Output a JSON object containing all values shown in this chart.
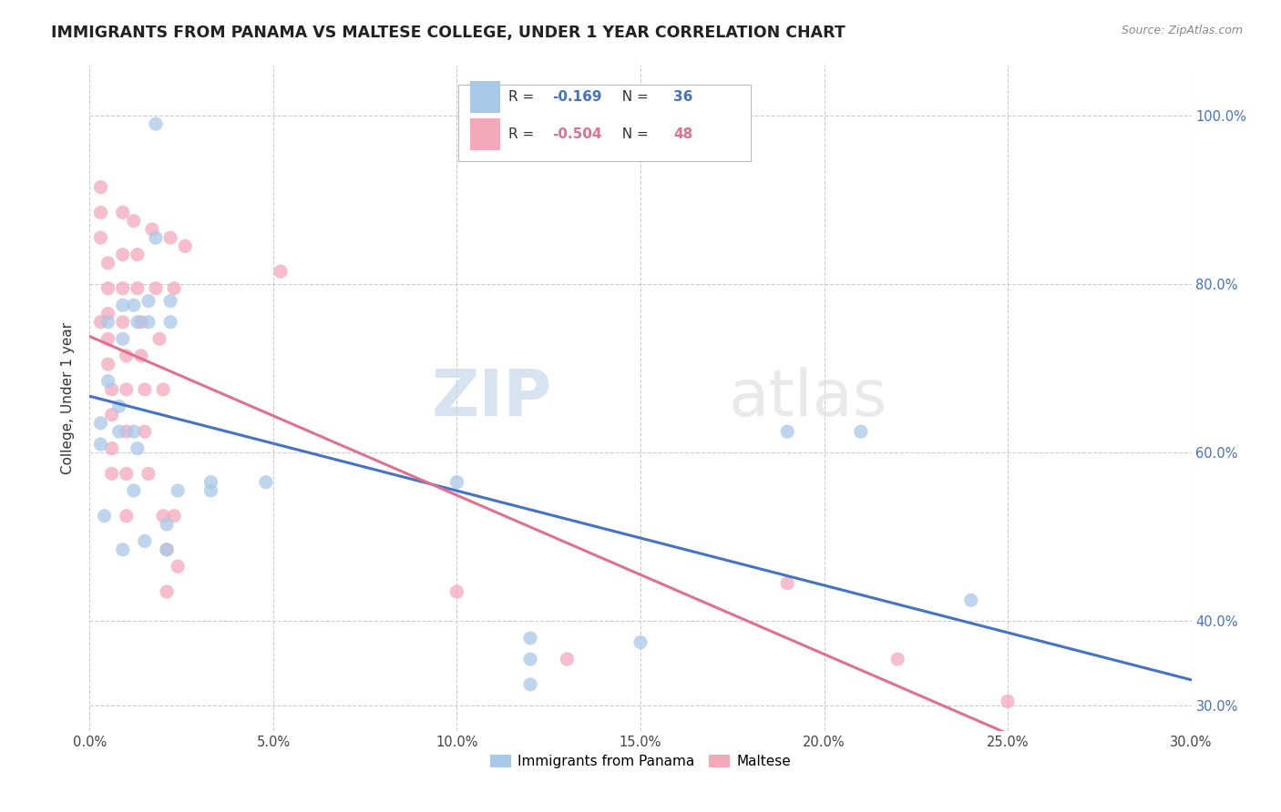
{
  "title": "IMMIGRANTS FROM PANAMA VS MALTESE COLLEGE, UNDER 1 YEAR CORRELATION CHART",
  "source": "Source: ZipAtlas.com",
  "ylabel": "College, Under 1 year",
  "xlim": [
    0.0,
    0.3
  ],
  "ylim": [
    0.27,
    1.06
  ],
  "blue_R": "-0.169",
  "blue_N": "36",
  "pink_R": "-0.504",
  "pink_N": "48",
  "blue_color": "#a8c8e8",
  "pink_color": "#f4a8bc",
  "blue_line_color": "#4472c4",
  "pink_line_color": "#e07090",
  "blue_scatter": [
    [
      0.018,
      0.99
    ],
    [
      0.005,
      0.685
    ],
    [
      0.018,
      0.855
    ],
    [
      0.005,
      0.755
    ],
    [
      0.009,
      0.775
    ],
    [
      0.009,
      0.735
    ],
    [
      0.012,
      0.775
    ],
    [
      0.013,
      0.755
    ],
    [
      0.016,
      0.78
    ],
    [
      0.016,
      0.755
    ],
    [
      0.022,
      0.78
    ],
    [
      0.022,
      0.755
    ],
    [
      0.003,
      0.635
    ],
    [
      0.008,
      0.655
    ],
    [
      0.003,
      0.61
    ],
    [
      0.008,
      0.625
    ],
    [
      0.012,
      0.625
    ],
    [
      0.013,
      0.605
    ],
    [
      0.012,
      0.555
    ],
    [
      0.024,
      0.555
    ],
    [
      0.033,
      0.565
    ],
    [
      0.004,
      0.525
    ],
    [
      0.009,
      0.485
    ],
    [
      0.015,
      0.495
    ],
    [
      0.021,
      0.515
    ],
    [
      0.021,
      0.485
    ],
    [
      0.033,
      0.555
    ],
    [
      0.048,
      0.565
    ],
    [
      0.1,
      0.565
    ],
    [
      0.12,
      0.38
    ],
    [
      0.15,
      0.375
    ],
    [
      0.24,
      0.425
    ],
    [
      0.19,
      0.625
    ],
    [
      0.21,
      0.625
    ],
    [
      0.12,
      0.355
    ],
    [
      0.12,
      0.325
    ]
  ],
  "pink_scatter": [
    [
      0.003,
      0.755
    ],
    [
      0.003,
      0.885
    ],
    [
      0.003,
      0.915
    ],
    [
      0.003,
      0.855
    ],
    [
      0.005,
      0.825
    ],
    [
      0.005,
      0.795
    ],
    [
      0.005,
      0.765
    ],
    [
      0.005,
      0.735
    ],
    [
      0.005,
      0.705
    ],
    [
      0.006,
      0.675
    ],
    [
      0.006,
      0.645
    ],
    [
      0.006,
      0.605
    ],
    [
      0.006,
      0.575
    ],
    [
      0.009,
      0.885
    ],
    [
      0.009,
      0.835
    ],
    [
      0.009,
      0.795
    ],
    [
      0.009,
      0.755
    ],
    [
      0.01,
      0.715
    ],
    [
      0.01,
      0.675
    ],
    [
      0.01,
      0.625
    ],
    [
      0.01,
      0.575
    ],
    [
      0.01,
      0.525
    ],
    [
      0.012,
      0.875
    ],
    [
      0.013,
      0.835
    ],
    [
      0.013,
      0.795
    ],
    [
      0.014,
      0.755
    ],
    [
      0.014,
      0.715
    ],
    [
      0.015,
      0.675
    ],
    [
      0.015,
      0.625
    ],
    [
      0.016,
      0.575
    ],
    [
      0.017,
      0.865
    ],
    [
      0.018,
      0.795
    ],
    [
      0.019,
      0.735
    ],
    [
      0.02,
      0.675
    ],
    [
      0.02,
      0.525
    ],
    [
      0.021,
      0.485
    ],
    [
      0.021,
      0.435
    ],
    [
      0.022,
      0.855
    ],
    [
      0.023,
      0.795
    ],
    [
      0.023,
      0.525
    ],
    [
      0.024,
      0.465
    ],
    [
      0.026,
      0.845
    ],
    [
      0.052,
      0.815
    ],
    [
      0.1,
      0.435
    ],
    [
      0.13,
      0.355
    ],
    [
      0.19,
      0.445
    ],
    [
      0.22,
      0.355
    ],
    [
      0.25,
      0.305
    ]
  ],
  "watermark_zip": "ZIP",
  "watermark_atlas": "atlas",
  "legend_title_blue": "R = ",
  "legend_title_pink": "R = ",
  "xtick_positions": [
    0.0,
    0.05,
    0.1,
    0.15,
    0.2,
    0.25,
    0.3
  ],
  "ytick_positions": [
    0.3,
    0.4,
    0.6,
    0.8,
    1.0
  ],
  "ytick_labels": [
    "30.0%",
    "40.0%",
    "60.0%",
    "80.0%",
    "100.0%"
  ]
}
